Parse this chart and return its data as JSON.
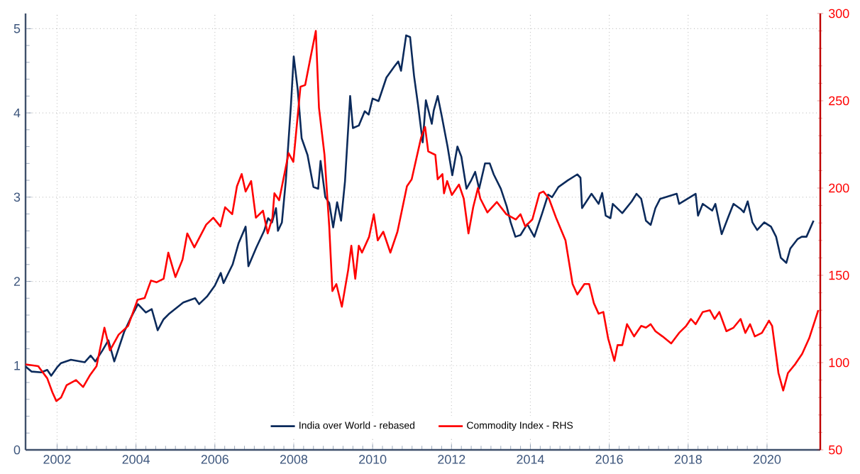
{
  "chart_data": {
    "type": "line",
    "xlim": [
      2001.2,
      2021.35
    ],
    "xticks": [
      2002,
      2004,
      2006,
      2008,
      2010,
      2012,
      2014,
      2016,
      2018,
      2020
    ],
    "ylim": [
      0,
      5.18
    ],
    "yticks": [
      0,
      1,
      2,
      3,
      4,
      5
    ],
    "y2lim": [
      50,
      300
    ],
    "y2ticks": [
      50,
      100,
      150,
      200,
      250,
      300
    ],
    "grid": true,
    "legend": "bottom",
    "line_style": "solid",
    "marker": "none",
    "series": [
      {
        "name": "India over World - rebased",
        "color": "#0b2a5b",
        "axis": "y",
        "x": [
          2001.2,
          2001.35,
          2001.6,
          2001.75,
          2001.85,
          2002.0,
          2002.1,
          2002.35,
          2002.7,
          2002.85,
          2002.97,
          2003.15,
          2003.3,
          2003.45,
          2003.7,
          2003.85,
          2004.05,
          2004.25,
          2004.4,
          2004.55,
          2004.7,
          2004.85,
          2005.2,
          2005.5,
          2005.6,
          2005.8,
          2006.0,
          2006.15,
          2006.22,
          2006.45,
          2006.6,
          2006.78,
          2006.85,
          2007.05,
          2007.25,
          2007.35,
          2007.45,
          2007.55,
          2007.6,
          2007.7,
          2007.8,
          2007.93,
          2008.0,
          2008.1,
          2008.2,
          2008.35,
          2008.5,
          2008.62,
          2008.68,
          2008.8,
          2008.9,
          2009.0,
          2009.1,
          2009.2,
          2009.3,
          2009.43,
          2009.5,
          2009.65,
          2009.8,
          2009.9,
          2010.0,
          2010.15,
          2010.35,
          2010.55,
          2010.65,
          2010.72,
          2010.85,
          2010.95,
          2011.05,
          2011.15,
          2011.27,
          2011.35,
          2011.5,
          2011.55,
          2011.65,
          2011.75,
          2011.9,
          2012.02,
          2012.15,
          2012.25,
          2012.38,
          2012.5,
          2012.6,
          2012.7,
          2012.85,
          2012.97,
          2013.07,
          2013.25,
          2013.4,
          2013.5,
          2013.62,
          2013.75,
          2013.92,
          2014.1,
          2014.3,
          2014.45,
          2014.55,
          2014.71,
          2014.95,
          2015.19,
          2015.27,
          2015.31,
          2015.55,
          2015.73,
          2015.82,
          2015.91,
          2016.03,
          2016.09,
          2016.33,
          2016.57,
          2016.69,
          2016.81,
          2016.93,
          2017.05,
          2017.17,
          2017.29,
          2017.71,
          2017.77,
          2018.19,
          2018.25,
          2018.37,
          2018.61,
          2018.69,
          2018.85,
          2019.03,
          2019.15,
          2019.33,
          2019.41,
          2019.51,
          2019.63,
          2019.75,
          2019.93,
          2020.1,
          2020.23,
          2020.35,
          2020.49,
          2020.59,
          2020.77,
          2020.88,
          2021.0,
          2021.18
        ],
        "values": [
          0.99,
          0.93,
          0.92,
          0.95,
          0.88,
          0.98,
          1.03,
          1.07,
          1.04,
          1.12,
          1.05,
          1.18,
          1.3,
          1.05,
          1.4,
          1.55,
          1.73,
          1.63,
          1.67,
          1.42,
          1.55,
          1.62,
          1.75,
          1.8,
          1.73,
          1.82,
          1.95,
          2.1,
          1.98,
          2.2,
          2.45,
          2.65,
          2.18,
          2.4,
          2.6,
          2.75,
          2.7,
          2.87,
          2.6,
          2.7,
          3.2,
          4.1,
          4.67,
          4.28,
          3.7,
          3.5,
          3.12,
          3.1,
          3.43,
          3.0,
          2.93,
          2.64,
          2.94,
          2.72,
          3.19,
          4.2,
          3.82,
          3.85,
          4.02,
          3.98,
          4.17,
          4.14,
          4.42,
          4.55,
          4.61,
          4.5,
          4.92,
          4.9,
          4.44,
          4.1,
          3.65,
          4.15,
          3.87,
          4.03,
          4.2,
          3.97,
          3.6,
          3.26,
          3.6,
          3.48,
          3.1,
          3.2,
          3.3,
          3.1,
          3.4,
          3.4,
          3.27,
          3.1,
          2.89,
          2.7,
          2.53,
          2.55,
          2.68,
          2.53,
          2.81,
          3.03,
          3.0,
          3.12,
          3.2,
          3.27,
          3.23,
          2.87,
          3.04,
          2.92,
          3.05,
          2.78,
          2.75,
          2.92,
          2.81,
          2.95,
          3.04,
          2.98,
          2.72,
          2.67,
          2.87,
          2.98,
          3.04,
          2.92,
          3.04,
          2.78,
          2.92,
          2.84,
          2.92,
          2.56,
          2.78,
          2.92,
          2.86,
          2.82,
          2.95,
          2.7,
          2.61,
          2.7,
          2.65,
          2.53,
          2.28,
          2.22,
          2.39,
          2.5,
          2.53,
          2.53,
          2.72
        ]
      },
      {
        "name": "Commodity Index - RHS",
        "color": "#ff0000",
        "axis": "y2",
        "x": [
          2001.2,
          2001.52,
          2001.75,
          2001.88,
          2001.98,
          2002.1,
          2002.24,
          2002.48,
          2002.66,
          2002.84,
          2003.0,
          2003.2,
          2003.34,
          2003.56,
          2003.8,
          2004.04,
          2004.22,
          2004.38,
          2004.52,
          2004.7,
          2004.82,
          2005.0,
          2005.18,
          2005.3,
          2005.48,
          2005.78,
          2005.96,
          2006.14,
          2006.26,
          2006.44,
          2006.56,
          2006.68,
          2006.78,
          2006.92,
          2007.04,
          2007.22,
          2007.34,
          2007.46,
          2007.51,
          2007.63,
          2007.87,
          2007.99,
          2008.17,
          2008.29,
          2008.41,
          2008.56,
          2008.64,
          2008.78,
          2008.9,
          2008.98,
          2009.08,
          2009.22,
          2009.38,
          2009.46,
          2009.56,
          2009.65,
          2009.73,
          2009.91,
          2010.03,
          2010.13,
          2010.27,
          2010.45,
          2010.63,
          2010.87,
          2010.99,
          2011.23,
          2011.33,
          2011.41,
          2011.59,
          2011.65,
          2011.77,
          2011.81,
          2011.89,
          2012.01,
          2012.19,
          2012.31,
          2012.43,
          2012.55,
          2012.67,
          2012.73,
          2012.91,
          2013.15,
          2013.39,
          2013.63,
          2013.75,
          2013.87,
          2014.05,
          2014.23,
          2014.33,
          2014.47,
          2014.65,
          2014.89,
          2015.07,
          2015.19,
          2015.37,
          2015.49,
          2015.61,
          2015.73,
          2015.85,
          2015.97,
          2016.13,
          2016.21,
          2016.33,
          2016.45,
          2016.63,
          2016.81,
          2016.93,
          2017.05,
          2017.17,
          2017.35,
          2017.57,
          2017.77,
          2017.95,
          2018.07,
          2018.19,
          2018.37,
          2018.55,
          2018.67,
          2018.79,
          2018.97,
          2019.15,
          2019.33,
          2019.45,
          2019.57,
          2019.69,
          2019.87,
          2020.05,
          2020.13,
          2020.29,
          2020.41,
          2020.53,
          2020.71,
          2020.89,
          2021.07,
          2021.3
        ],
        "values": [
          99,
          98,
          91,
          83,
          78,
          80,
          87,
          90,
          86,
          93,
          98,
          120,
          107,
          116,
          121,
          136,
          137,
          147,
          146,
          148,
          163,
          149,
          159,
          174,
          166,
          179,
          183,
          178,
          189,
          185,
          201,
          208,
          198,
          204,
          183,
          187,
          174,
          183,
          197,
          193,
          220,
          215,
          258,
          259,
          273,
          290,
          246,
          219,
          178,
          141,
          145,
          132,
          153,
          167,
          148,
          167,
          163,
          172,
          185,
          170,
          175,
          163,
          175,
          201,
          205,
          229,
          235,
          221,
          219,
          205,
          208,
          197,
          204,
          196,
          202,
          194,
          174,
          189,
          200,
          194,
          186,
          192,
          185,
          182,
          185,
          178,
          182,
          197,
          198,
          194,
          183,
          170,
          145,
          139,
          145,
          145,
          134,
          128,
          129,
          114,
          101,
          110,
          110,
          122,
          115,
          121,
          120,
          122,
          118,
          115,
          111,
          117,
          121,
          125,
          122,
          129,
          130,
          125,
          129,
          118,
          120,
          125,
          117,
          122,
          115,
          117,
          124,
          121,
          94,
          84,
          94,
          99,
          105,
          114,
          130
        ]
      }
    ]
  }
}
